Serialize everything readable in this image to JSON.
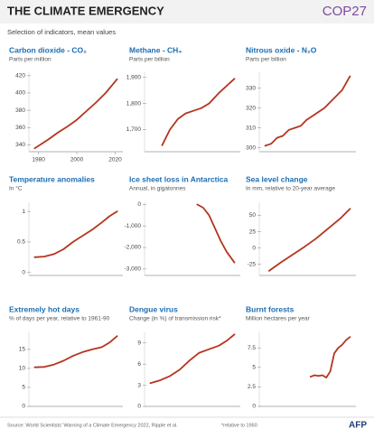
{
  "header": {
    "title": "THE CLIMATE EMERGENCY",
    "subtitle": "Selection of indicators, mean values",
    "logo": "COP27"
  },
  "footer": {
    "source": "Source: World Scientists' Warning of a Climate Emergency 2022, Ripple et al.",
    "note": "*relative to 1950",
    "agency": "AFP"
  },
  "chart_data": [
    {
      "type": "line",
      "title": "Carbon dioxide - CO₂",
      "subtitle": "Parts per million",
      "color": "#b5341f",
      "x": [
        1978,
        1985,
        1990,
        1995,
        2000,
        2005,
        2010,
        2015,
        2021
      ],
      "values": [
        336,
        346,
        354,
        361,
        369,
        379,
        389,
        400,
        416
      ],
      "xlim": [
        1975,
        2024
      ],
      "xticks": [
        1980,
        2000,
        2020
      ],
      "ylim": [
        332,
        424
      ],
      "yticks": [
        340,
        360,
        380,
        400,
        420
      ]
    },
    {
      "type": "line",
      "title": "Methane - CH₄",
      "subtitle": "Parts per billion",
      "color": "#b5341f",
      "x": [
        1984,
        1988,
        1992,
        1996,
        2000,
        2004,
        2008,
        2013,
        2021
      ],
      "values": [
        1640,
        1700,
        1740,
        1762,
        1772,
        1782,
        1800,
        1840,
        1895
      ],
      "xlim": [
        1975,
        2024
      ],
      "ylim": [
        1615,
        1920
      ],
      "yticks": [
        {
          "value": 1700,
          "label": "1,700"
        },
        {
          "value": 1800,
          "label": "1,800"
        },
        {
          "value": 1900,
          "label": "1,900"
        }
      ]
    },
    {
      "type": "line",
      "title": "Nitrous oxide - N₂O",
      "subtitle": "Parts per billion",
      "color": "#b5341f",
      "x": [
        1978,
        1981,
        1984,
        1987,
        1990,
        1993,
        1996,
        1999,
        2002,
        2005,
        2008,
        2011,
        2014,
        2017,
        2021
      ],
      "values": [
        301,
        302,
        305,
        306,
        309,
        310,
        311,
        314,
        316,
        318,
        320,
        323,
        326,
        329,
        336
      ],
      "xlim": [
        1975,
        2024
      ],
      "ylim": [
        298,
        338
      ],
      "yticks": [
        300,
        310,
        320,
        330
      ]
    },
    {
      "type": "line",
      "title": "Temperature anomalies",
      "subtitle": "In °C",
      "color": "#b5341f",
      "x": [
        1978,
        1983,
        1988,
        1993,
        1998,
        2003,
        2008,
        2013,
        2017,
        2021
      ],
      "values": [
        0.25,
        0.26,
        0.3,
        0.38,
        0.5,
        0.6,
        0.7,
        0.82,
        0.92,
        1.0
      ],
      "xlim": [
        1975,
        2024
      ],
      "ylim": [
        -0.05,
        1.15
      ],
      "yticks": [
        0,
        0.5,
        1
      ]
    },
    {
      "type": "line",
      "title": "Ice sheet loss in Antarctica",
      "subtitle": "Annual, in gigatonnes",
      "color": "#b5341f",
      "x": [
        2002,
        2005,
        2008,
        2011,
        2014,
        2017,
        2021
      ],
      "values": [
        0,
        -150,
        -500,
        -1100,
        -1700,
        -2200,
        -2700
      ],
      "xlim": [
        1975,
        2024
      ],
      "ylim": [
        -3300,
        100
      ],
      "yticks": [
        0,
        {
          "value": -1000,
          "label": "-1,000"
        },
        {
          "value": -2000,
          "label": "-2,000"
        },
        {
          "value": -3000,
          "label": "-3,000"
        }
      ]
    },
    {
      "type": "line",
      "title": "Sea level change",
      "subtitle": "In mm, relative  to 20-year average",
      "color": "#b5341f",
      "x": [
        1980,
        1986,
        1992,
        1998,
        2004,
        2010,
        2016,
        2021
      ],
      "values": [
        -35,
        -22,
        -10,
        2,
        15,
        30,
        45,
        60
      ],
      "xlim": [
        1975,
        2024
      ],
      "ylim": [
        -42,
        70
      ],
      "yticks": [
        -25,
        0,
        25,
        50
      ]
    },
    {
      "type": "line",
      "title": "Extremely hot days",
      "subtitle": "% of days per year, relative to 1961-90",
      "color": "#b5341f",
      "x": [
        1978,
        1983,
        1988,
        1993,
        1998,
        2003,
        2008,
        2013,
        2017,
        2021
      ],
      "values": [
        10.3,
        10.4,
        11,
        12,
        13.3,
        14.3,
        15,
        15.6,
        16.8,
        18.5
      ],
      "xlim": [
        1975,
        2024
      ],
      "ylim": [
        0,
        19.5
      ],
      "yticks": [
        0,
        5,
        10,
        15
      ]
    },
    {
      "type": "line",
      "title": "Dengue virus",
      "subtitle": "Change (in %) of transmission risk*",
      "color": "#b5341f",
      "x": [
        1978,
        1983,
        1988,
        1993,
        1998,
        2003,
        2008,
        2013,
        2017,
        2021
      ],
      "values": [
        3.3,
        3.7,
        4.3,
        5.2,
        6.5,
        7.6,
        8.1,
        8.6,
        9.3,
        10.2
      ],
      "xlim": [
        1975,
        2024
      ],
      "ylim": [
        0,
        10.5
      ],
      "yticks": [
        0,
        3,
        6,
        9
      ]
    },
    {
      "type": "line",
      "title": "Burnt forests",
      "subtitle": "Million hectares per year",
      "color": "#b5341f",
      "x": [
        2001,
        2003,
        2005,
        2007,
        2009,
        2011,
        2013,
        2015,
        2017,
        2019,
        2021
      ],
      "values": [
        3.8,
        4,
        3.9,
        4,
        3.7,
        4.5,
        6.8,
        7.5,
        7.9,
        8.5,
        8.9
      ],
      "xlim": [
        1975,
        2024
      ],
      "ylim": [
        0,
        9.5
      ],
      "yticks": [
        0,
        2.5,
        5,
        7.5
      ]
    }
  ]
}
